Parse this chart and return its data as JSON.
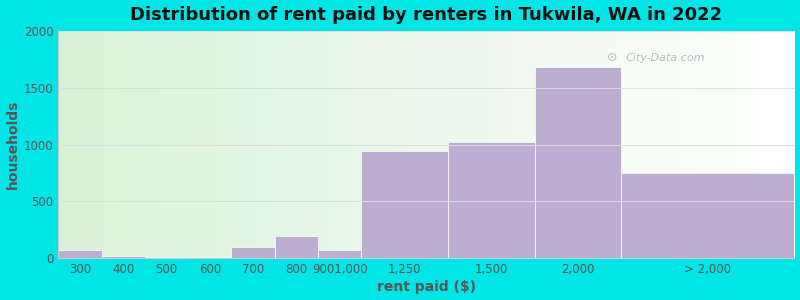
{
  "title": "Distribution of rent paid by renters in Tukwila, WA in 2022",
  "xlabel": "rent paid ($)",
  "ylabel": "households",
  "bar_labels": [
    "300",
    "400",
    "500",
    "600",
    "700",
    "800",
    "9001,000",
    "1,250",
    "1,500",
    "2,000",
    "> 2,000"
  ],
  "bar_values": [
    75,
    20,
    15,
    15,
    100,
    195,
    75,
    940,
    1020,
    1680,
    750
  ],
  "bar_widths": [
    1,
    1,
    1,
    1,
    1,
    1,
    1,
    2,
    2,
    2,
    4
  ],
  "bar_color": "#bbaed0",
  "ylim": [
    0,
    2000
  ],
  "yticks": [
    0,
    500,
    1000,
    1500,
    2000
  ],
  "bg_color": "#00e5e5",
  "title_fontsize": 13,
  "axis_label_fontsize": 10,
  "tick_fontsize": 8.5,
  "watermark_text": "City-Data.com",
  "watermark_color": "#aaaaaa",
  "grid_color": "#dddddd"
}
